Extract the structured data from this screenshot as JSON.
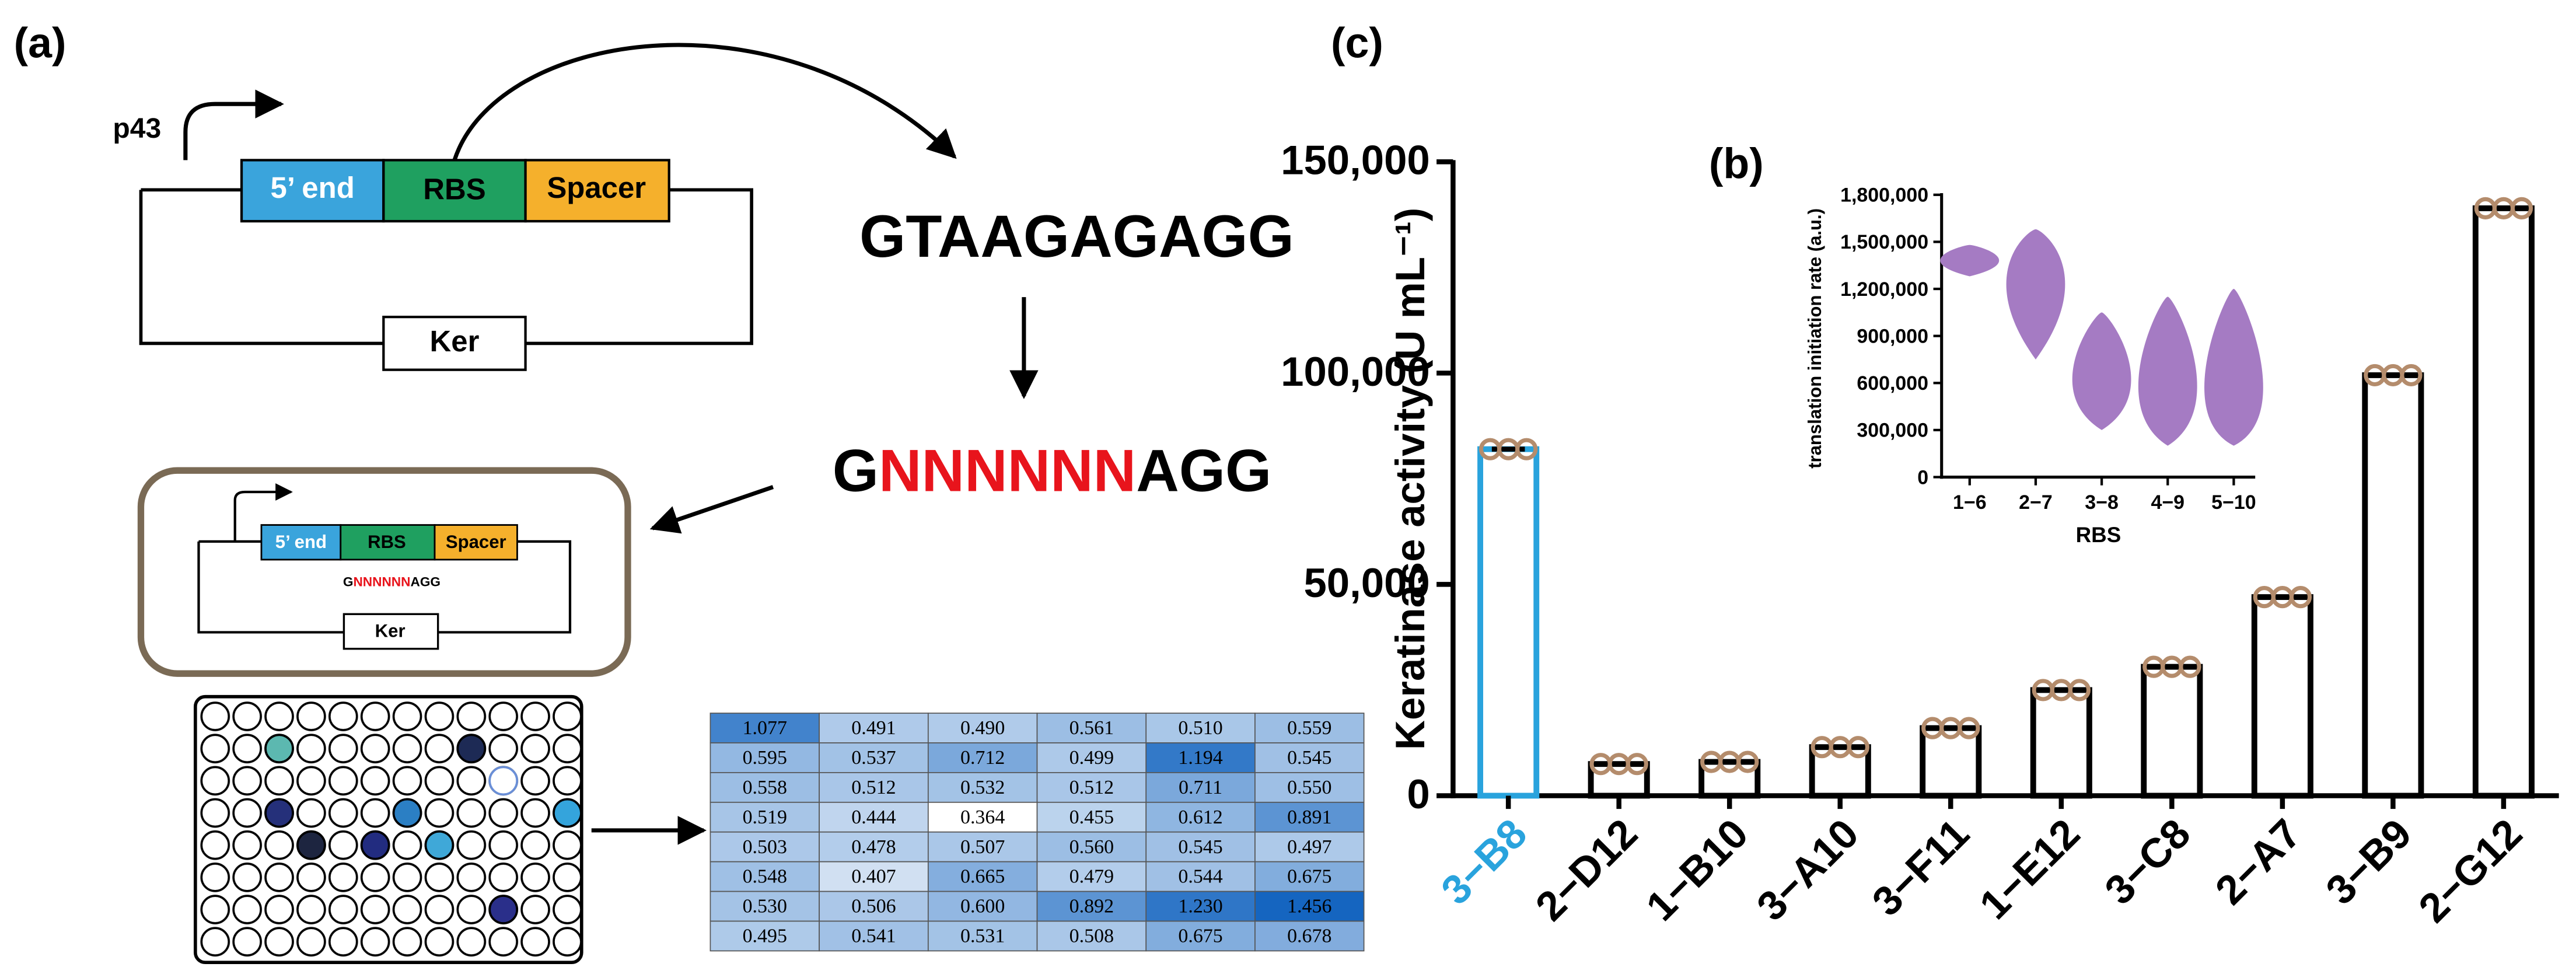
{
  "labels": {
    "a": "(a)",
    "b": "(b)",
    "c": "(c)"
  },
  "diagram": {
    "promoter": "p43",
    "five_end": "5’ end",
    "rbs": "RBS",
    "spacer": "Spacer",
    "ker": "Ker",
    "sequence": "GTAAGAGAGG",
    "library": [
      "G",
      "NNNNNN",
      "AGG"
    ]
  },
  "table": {
    "rows": [
      [
        "1.077",
        "0.491",
        "0.490",
        "0.561",
        "0.510",
        "0.559"
      ],
      [
        "0.595",
        "0.537",
        "0.712",
        "0.499",
        "1.194",
        "0.545"
      ],
      [
        "0.558",
        "0.512",
        "0.532",
        "0.512",
        "0.711",
        "0.550"
      ],
      [
        "0.519",
        "0.444",
        "0.364",
        "0.455",
        "0.612",
        "0.891"
      ],
      [
        "0.503",
        "0.478",
        "0.507",
        "0.560",
        "0.545",
        "0.497"
      ],
      [
        "0.548",
        "0.407",
        "0.665",
        "0.479",
        "0.544",
        "0.675"
      ],
      [
        "0.530",
        "0.506",
        "0.600",
        "0.892",
        "1.230",
        "1.456"
      ],
      [
        "0.495",
        "0.541",
        "0.531",
        "0.508",
        "0.675",
        "0.678"
      ]
    ]
  },
  "chart_data": [
    {
      "type": "bar",
      "y_label": "Keratinase activity (U mL⁻¹)",
      "categories": [
        "3−B8",
        "2−D12",
        "1−B10",
        "3−A10",
        "3−F11",
        "1−E12",
        "3−C8",
        "2−A7",
        "3−B9",
        "2−G12"
      ],
      "values": [
        82000,
        7500,
        8000,
        11500,
        16000,
        25000,
        30500,
        47000,
        99500,
        139000
      ],
      "colors": [
        "#29a3dd",
        "#000000",
        "#000000",
        "#000000",
        "#000000",
        "#000000",
        "#000000",
        "#000000",
        "#000000",
        "#000000"
      ],
      "point_color": "#b48c6c",
      "ylim": [
        0,
        150000
      ],
      "yticks": [
        0,
        {
          "value": 50000,
          "label": "50,000"
        },
        {
          "value": 100000,
          "label": "100,000"
        },
        {
          "value": 150000,
          "label": "150,000"
        }
      ]
    },
    {
      "type": "violin",
      "x_label": "RBS",
      "y_label": "translation initiation rate (a.u.)",
      "categories": [
        "1−6",
        "2−7",
        "3−8",
        "4−9",
        "5−10"
      ],
      "mins": [
        1280000,
        750000,
        300000,
        200000,
        200000
      ],
      "medians": [
        1380000,
        1300000,
        550000,
        450000,
        400000
      ],
      "maxs": [
        1480000,
        1580000,
        1050000,
        1150000,
        1200000
      ],
      "color": "#a57bc3",
      "ylim": [
        0,
        1800000
      ],
      "yticks": [
        0,
        {
          "value": 300000,
          "label": "300,000"
        },
        {
          "value": 600000,
          "label": "600,000"
        },
        {
          "value": 900000,
          "label": "900,000"
        },
        {
          "value": 1200000,
          "label": "1,200,000"
        },
        {
          "value": 1500000,
          "label": "1,500,000"
        },
        {
          "value": 1800000,
          "label": "1,800,000"
        }
      ]
    }
  ]
}
